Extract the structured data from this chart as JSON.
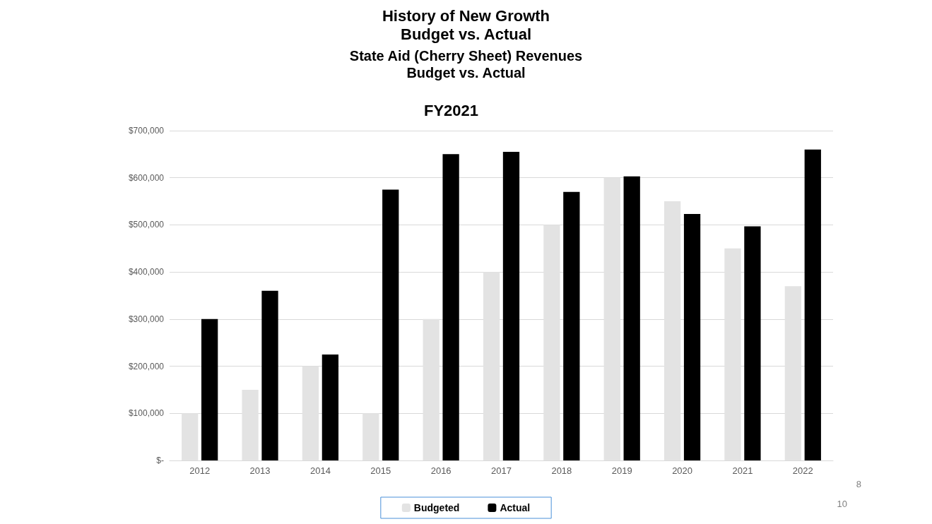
{
  "chart_data": {
    "type": "bar",
    "title": "History of New Growth\nBudget vs. Actual",
    "subtitle": "State Aid (Cherry Sheet) Revenues\nBudget vs. Actual",
    "annotations": [
      "FY2021",
      "8",
      "10"
    ],
    "categories": [
      "2012",
      "2013",
      "2014",
      "2015",
      "2016",
      "2017",
      "2018",
      "2019",
      "2020",
      "2021",
      "2022"
    ],
    "series": [
      {
        "name": "Budgeted",
        "color": "#e3e3e3",
        "values": [
          100000,
          150000,
          200000,
          100000,
          300000,
          400000,
          500000,
          600000,
          550000,
          450000,
          370000
        ]
      },
      {
        "name": "Actual",
        "color": "#000000",
        "values": [
          300000,
          360000,
          225000,
          575000,
          650000,
          655000,
          570000,
          603000,
          523000,
          497000,
          660000
        ]
      }
    ],
    "ylim": [
      0,
      700000
    ],
    "yticks": [
      {
        "value": 0,
        "label": "$-"
      },
      {
        "value": 100000,
        "label": "$100,000"
      },
      {
        "value": 200000,
        "label": "$200,000"
      },
      {
        "value": 300000,
        "label": "$300,000"
      },
      {
        "value": 400000,
        "label": "$400,000"
      },
      {
        "value": 500000,
        "label": "$500,000"
      },
      {
        "value": 600000,
        "label": "$600,000"
      },
      {
        "value": 700000,
        "label": "$700,000"
      }
    ],
    "grid": "y",
    "legend": "bottom"
  }
}
